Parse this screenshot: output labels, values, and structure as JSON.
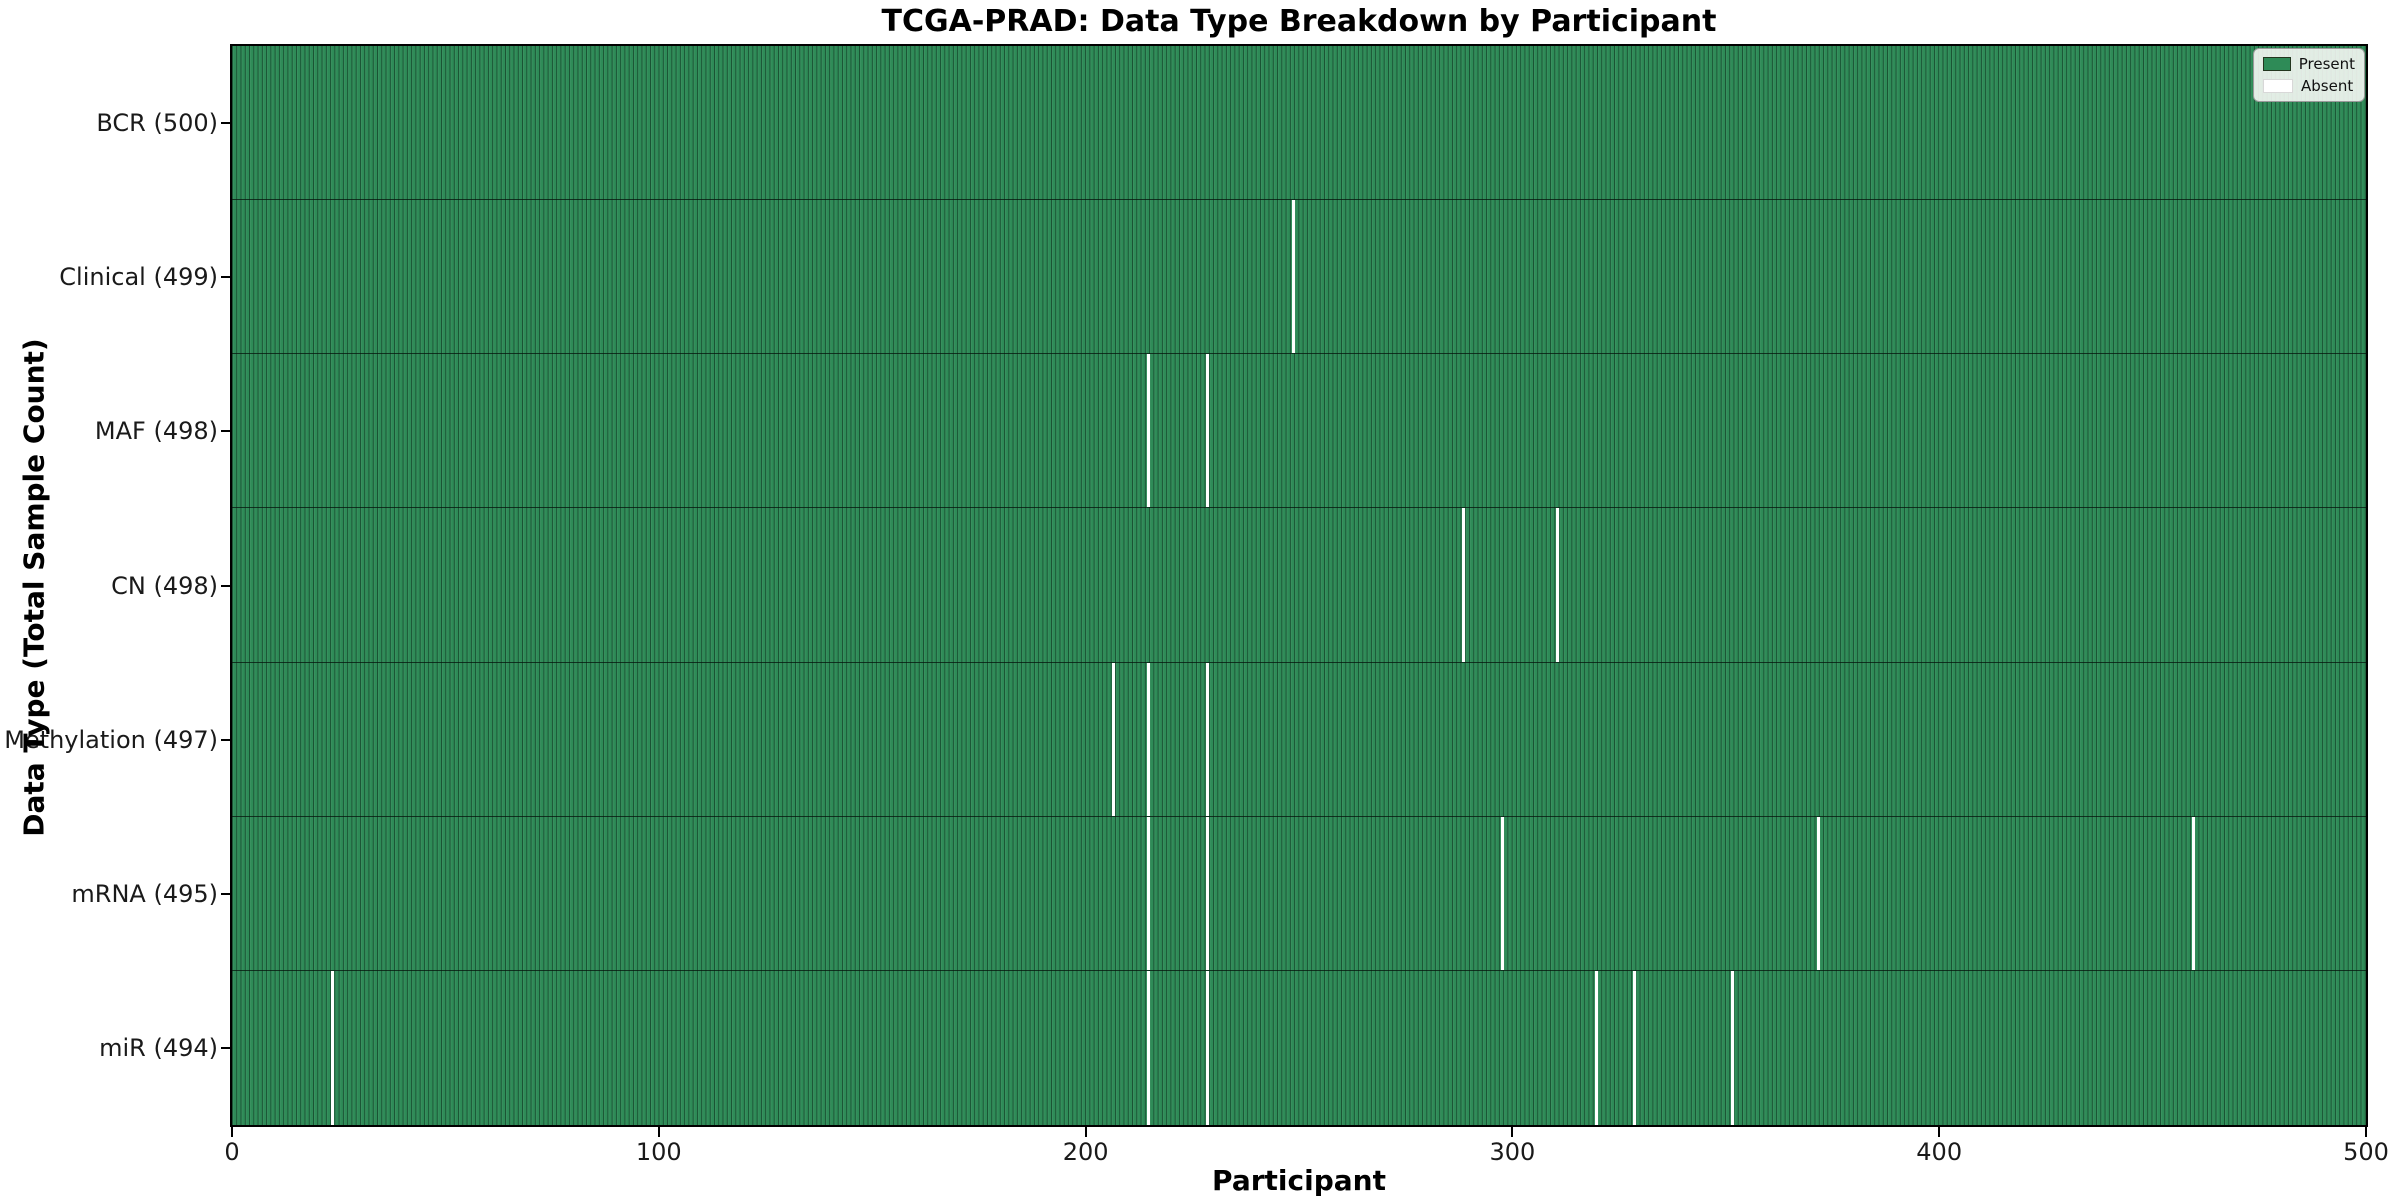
{
  "title": "TCGA-PRAD: Data Type Breakdown by Participant",
  "axes": {
    "x_label": "Participant",
    "y_label": "Data Type (Total Sample Count)"
  },
  "legend": {
    "entries": [
      {
        "label": "Present",
        "color": "#2e8b57",
        "edge": "#23361f"
      },
      {
        "label": "Absent",
        "color": "#ffffff",
        "edge": "#d8d8d8"
      }
    ],
    "position": "upper right"
  },
  "colors": {
    "present": "#2e8b57",
    "absent": "#ffffff",
    "cell_edge": "rgba(5,25,15,0.5)",
    "frame": "#000000"
  },
  "chart_data": {
    "type": "heatmap",
    "title": "TCGA-PRAD: Data Type Breakdown by Participant",
    "xlabel": "Participant",
    "ylabel": "Data Type (Total Sample Count)",
    "x_range": [
      0,
      500
    ],
    "x_ticks": [
      0,
      100,
      200,
      300,
      400,
      500
    ],
    "n_participants": 500,
    "grid": false,
    "legend_position": "upper right",
    "value_legend": [
      {
        "label": "Present",
        "color": "#2e8b57"
      },
      {
        "label": "Absent",
        "color": "#ffffff"
      }
    ],
    "rows": [
      {
        "name": "BCR",
        "label": "BCR (500)",
        "total_samples": 500,
        "absent_participants": []
      },
      {
        "name": "Clinical",
        "label": "Clinical (499)",
        "total_samples": 499,
        "absent_participants": [
          248
        ]
      },
      {
        "name": "MAF",
        "label": "MAF (498)",
        "total_samples": 498,
        "absent_participants": [
          214,
          228
        ]
      },
      {
        "name": "CN",
        "label": "CN (498)",
        "total_samples": 498,
        "absent_participants": [
          288,
          310
        ]
      },
      {
        "name": "Methylation",
        "label": "Methylation (497)",
        "total_samples": 497,
        "absent_participants": [
          206,
          214,
          228
        ]
      },
      {
        "name": "mRNA",
        "label": "mRNA (495)",
        "total_samples": 495,
        "absent_participants": [
          214,
          228,
          297,
          371,
          459
        ]
      },
      {
        "name": "miR",
        "label": "miR (494)",
        "total_samples": 494,
        "absent_participants": [
          23,
          214,
          228,
          319,
          328,
          351
        ]
      }
    ]
  }
}
